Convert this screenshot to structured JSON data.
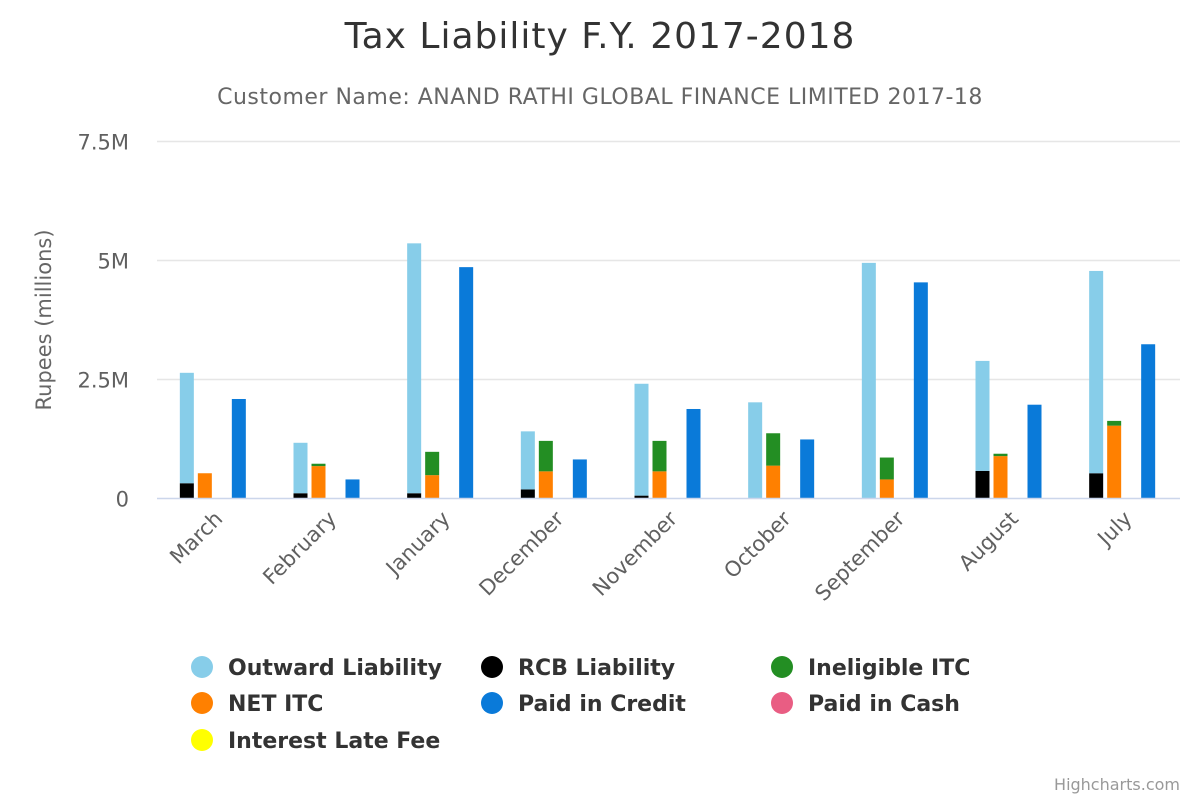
{
  "chart_data": {
    "type": "bar",
    "title": "Tax Liability F.Y. 2017-2018",
    "subtitle": "Customer Name: ANAND RATHI GLOBAL FINANCE LIMITED 2017-18",
    "ylabel": "Rupees (millions)",
    "ylim": [
      0,
      7500000
    ],
    "yticks": [
      0,
      2500000,
      5000000,
      7500000
    ],
    "ytick_labels": [
      "0",
      "2.5M",
      "5M",
      "7.5M"
    ],
    "categories": [
      "March",
      "February",
      "January",
      "December",
      "November",
      "October",
      "September",
      "August",
      "July"
    ],
    "stack_groups": [
      {
        "stack": "Liability",
        "series": [
          "RCB Liability",
          "Outward Liability"
        ]
      },
      {
        "stack": "ITC",
        "series": [
          "NET ITC",
          "Ineligible ITC"
        ]
      },
      {
        "stack": "Payment",
        "series": [
          "Paid in Credit",
          "Paid in Cash",
          "Interest Late Fee"
        ]
      }
    ],
    "series": [
      {
        "name": "Outward Liability",
        "color": "#87cde9",
        "stack": "Liability",
        "values": [
          2320000,
          1060000,
          5250000,
          1220000,
          2350000,
          2010000,
          4940000,
          2310000,
          4250000
        ]
      },
      {
        "name": "RCB Liability",
        "color": "#000000",
        "stack": "Liability",
        "values": [
          310000,
          100000,
          100000,
          180000,
          50000,
          0,
          0,
          570000,
          520000
        ]
      },
      {
        "name": "Ineligible ITC",
        "color": "#238e23",
        "stack": "ITC",
        "values": [
          0,
          50000,
          490000,
          640000,
          640000,
          680000,
          460000,
          50000,
          100000
        ]
      },
      {
        "name": "NET ITC",
        "color": "#ff8000",
        "stack": "ITC",
        "values": [
          520000,
          670000,
          480000,
          560000,
          560000,
          680000,
          390000,
          880000,
          1520000
        ]
      },
      {
        "name": "Paid in Credit",
        "color": "#0a7ad9",
        "stack": "Payment",
        "values": [
          2080000,
          390000,
          4850000,
          810000,
          1870000,
          1230000,
          4530000,
          1960000,
          3230000
        ]
      },
      {
        "name": "Paid in Cash",
        "color": "#e95d83",
        "stack": "Payment",
        "values": [
          0,
          0,
          0,
          0,
          0,
          0,
          0,
          0,
          0
        ]
      },
      {
        "name": "Interest Late Fee",
        "color": "#ffff00",
        "stack": "Payment",
        "values": [
          0,
          0,
          0,
          0,
          0,
          0,
          0,
          0,
          0
        ]
      }
    ],
    "legend": {
      "placement": "bottom",
      "items": [
        "Outward Liability",
        "RCB Liability",
        "Ineligible ITC",
        "NET ITC",
        "Paid in Credit",
        "Paid in Cash",
        "Interest Late Fee"
      ]
    },
    "grid": true,
    "credits": "Highcharts.com"
  }
}
